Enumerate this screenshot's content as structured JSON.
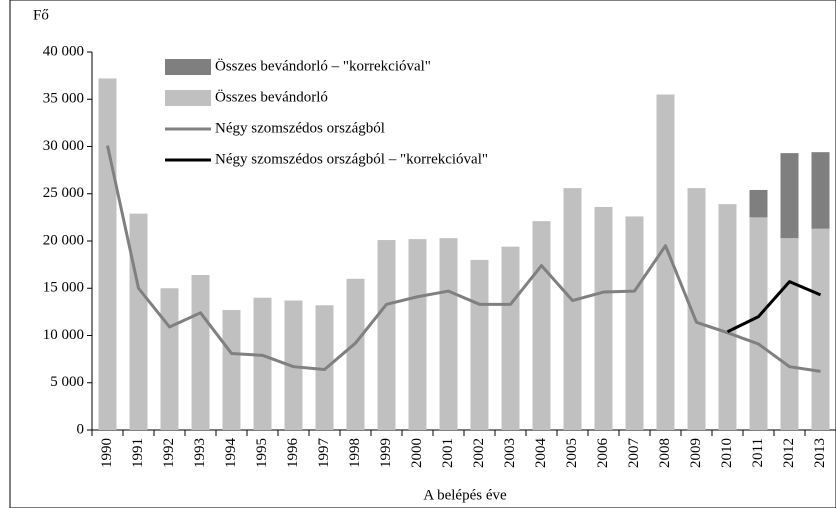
{
  "chart_data": {
    "type": "bar",
    "y_axis_label": "Fő",
    "x_axis_label": "A belépés éve",
    "categories": [
      "1990",
      "1991",
      "1992",
      "1993",
      "1994",
      "1995",
      "1996",
      "1997",
      "1998",
      "1999",
      "2000",
      "2001",
      "2002",
      "2003",
      "2004",
      "2005",
      "2006",
      "2007",
      "2008",
      "2009",
      "2010",
      "2011",
      "2012",
      "2013"
    ],
    "stacked": true,
    "series": [
      {
        "name": "Összes bevándorló – \"korrekcióval\"",
        "type": "bar",
        "color": "#7f7f7f",
        "values": [
          null,
          null,
          null,
          null,
          null,
          null,
          null,
          null,
          null,
          null,
          null,
          null,
          null,
          null,
          null,
          null,
          null,
          null,
          null,
          null,
          null,
          2900,
          9000,
          8100
        ]
      },
      {
        "name": "Összes bevándorló",
        "type": "bar",
        "color": "#c0c0c0",
        "values": [
          37200,
          22900,
          15000,
          16400,
          12700,
          14000,
          13700,
          13200,
          16000,
          20100,
          20200,
          20300,
          18000,
          19400,
          22100,
          25600,
          23600,
          22600,
          35500,
          25600,
          23900,
          22500,
          20300,
          21300
        ]
      },
      {
        "name": "Négy szomszédos országból",
        "type": "line",
        "color": "#808080",
        "values": [
          30100,
          15000,
          10900,
          12400,
          8100,
          7900,
          6700,
          6400,
          9200,
          13300,
          14100,
          14700,
          13300,
          13300,
          17400,
          13700,
          14600,
          14700,
          19500,
          11400,
          10300,
          9100,
          6700,
          6200
        ]
      },
      {
        "name": "Négy szomszédos országból – \"korrekcióval\"",
        "type": "line",
        "color": "#000000",
        "values": [
          null,
          null,
          null,
          null,
          null,
          null,
          null,
          null,
          null,
          null,
          null,
          null,
          null,
          null,
          null,
          null,
          null,
          null,
          null,
          null,
          10400,
          12000,
          15700,
          14300
        ]
      }
    ],
    "ylim": [
      0,
      40000
    ],
    "yticks": [
      {
        "value": 0,
        "label": "0"
      },
      {
        "value": 5000,
        "label": "5 000"
      },
      {
        "value": 10000,
        "label": "10 000"
      },
      {
        "value": 15000,
        "label": "15 000"
      },
      {
        "value": 20000,
        "label": "20 000"
      },
      {
        "value": 25000,
        "label": "25 000"
      },
      {
        "value": 30000,
        "label": "30 000"
      },
      {
        "value": 35000,
        "label": "35 000"
      },
      {
        "value": 40000,
        "label": "40 000"
      }
    ],
    "grid": false
  }
}
